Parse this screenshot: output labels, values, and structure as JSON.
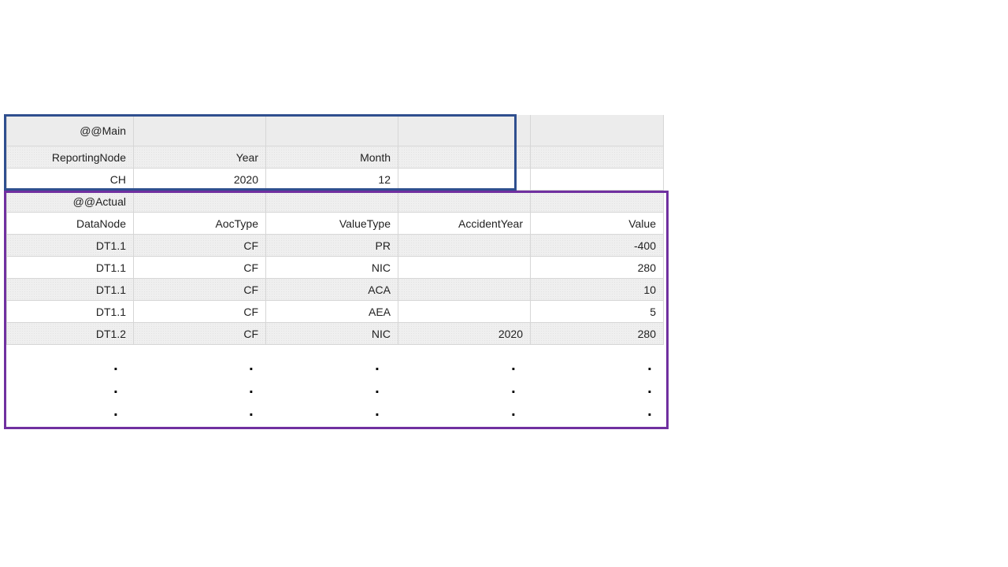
{
  "main_section": {
    "tag": "@@Main",
    "headers": [
      "ReportingNode",
      "Year",
      "Month"
    ],
    "values": [
      "CH",
      "2020",
      "12"
    ]
  },
  "actual_section": {
    "tag": "@@Actual",
    "headers": [
      "DataNode",
      "AocType",
      "ValueType",
      "AccidentYear",
      "Value"
    ],
    "rows": [
      [
        "DT1.1",
        "CF",
        "PR",
        "",
        "-400"
      ],
      [
        "DT1.1",
        "CF",
        "NIC",
        "",
        "280"
      ],
      [
        "DT1.1",
        "CF",
        "ACA",
        "",
        "10"
      ],
      [
        "DT1.1",
        "CF",
        "AEA",
        "",
        "5"
      ],
      [
        "DT1.2",
        "CF",
        "NIC",
        "2020",
        "280"
      ]
    ],
    "continuation_mark": "."
  },
  "colors": {
    "main_box": "#2f4f8f",
    "actual_box": "#7030a0"
  }
}
